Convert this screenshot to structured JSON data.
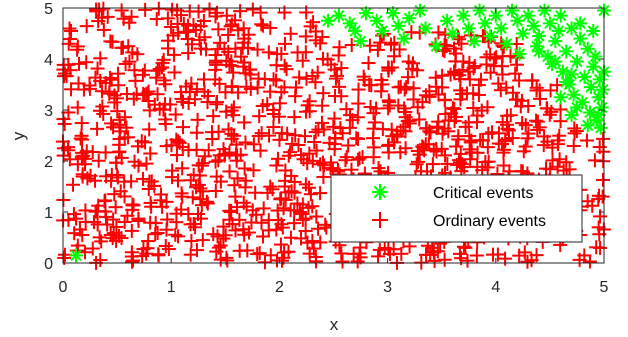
{
  "chart_data": {
    "type": "scatter",
    "title": "",
    "xlabel": "x",
    "ylabel": "y",
    "xlim": [
      0,
      5
    ],
    "ylim": [
      0,
      5
    ],
    "xticks": [
      "0",
      "1",
      "2",
      "3",
      "4",
      "5"
    ],
    "yticks": [
      "0",
      "1",
      "2",
      "3",
      "4",
      "5"
    ],
    "grid": false,
    "legend_position": "lower-right",
    "series": [
      {
        "name": "Critical events",
        "marker": "asterisk",
        "color": "#00ff00",
        "points": [
          [
            0.12,
            0.15
          ],
          [
            2.45,
            4.75
          ],
          [
            2.55,
            4.85
          ],
          [
            2.65,
            4.7
          ],
          [
            2.7,
            4.55
          ],
          [
            2.75,
            4.35
          ],
          [
            2.8,
            4.9
          ],
          [
            2.9,
            4.75
          ],
          [
            2.95,
            4.55
          ],
          [
            3.05,
            4.9
          ],
          [
            3.1,
            4.65
          ],
          [
            3.15,
            4.4
          ],
          [
            3.2,
            4.8
          ],
          [
            3.3,
            4.95
          ],
          [
            3.35,
            4.6
          ],
          [
            3.45,
            4.25
          ],
          [
            3.55,
            4.75
          ],
          [
            3.6,
            4.5
          ],
          [
            3.7,
            4.85
          ],
          [
            3.75,
            4.6
          ],
          [
            3.8,
            4.35
          ],
          [
            3.85,
            4.95
          ],
          [
            3.9,
            4.7
          ],
          [
            3.95,
            4.45
          ],
          [
            4.0,
            4.85
          ],
          [
            4.05,
            4.6
          ],
          [
            4.1,
            4.3
          ],
          [
            4.15,
            4.95
          ],
          [
            4.2,
            4.75
          ],
          [
            4.22,
            4.1
          ],
          [
            4.25,
            4.5
          ],
          [
            4.3,
            4.85
          ],
          [
            4.35,
            4.65
          ],
          [
            4.38,
            4.25
          ],
          [
            4.4,
            4.45
          ],
          [
            4.45,
            4.95
          ],
          [
            4.48,
            4.05
          ],
          [
            4.5,
            4.7
          ],
          [
            4.52,
            3.9
          ],
          [
            4.55,
            4.35
          ],
          [
            4.58,
            4.55
          ],
          [
            4.6,
            4.85
          ],
          [
            4.62,
            3.75
          ],
          [
            4.65,
            4.15
          ],
          [
            4.68,
            3.5
          ],
          [
            4.7,
            4.6
          ],
          [
            4.72,
            3.3
          ],
          [
            4.75,
            3.95
          ],
          [
            4.78,
            4.4
          ],
          [
            4.8,
            3.15
          ],
          [
            4.82,
            3.65
          ],
          [
            4.85,
            4.2
          ],
          [
            4.87,
            2.95
          ],
          [
            4.88,
            3.45
          ],
          [
            4.9,
            3.85
          ],
          [
            4.92,
            4.05
          ],
          [
            4.93,
            2.8
          ],
          [
            4.95,
            3.25
          ],
          [
            4.96,
            3.6
          ],
          [
            4.97,
            2.65
          ],
          [
            4.98,
            3.05
          ],
          [
            4.99,
            3.4
          ],
          [
            5.0,
            3.75
          ],
          [
            5.0,
            4.95
          ],
          [
            4.9,
            4.55
          ],
          [
            4.75,
            3.05
          ],
          [
            4.6,
            3.25
          ],
          [
            4.65,
            3.55
          ],
          [
            4.55,
            3.95
          ],
          [
            4.4,
            4.15
          ],
          [
            4.85,
            2.7
          ],
          [
            4.7,
            2.9
          ],
          [
            4.78,
            4.7
          ],
          [
            4.95,
            2.9
          ],
          [
            4.7,
            3.7
          ]
        ]
      },
      {
        "name": "Ordinary events",
        "marker": "plus",
        "color": "#ff0000",
        "generator": {
          "count": 1150,
          "seed": 7,
          "excluded_marker_region": "critical"
        }
      }
    ]
  }
}
